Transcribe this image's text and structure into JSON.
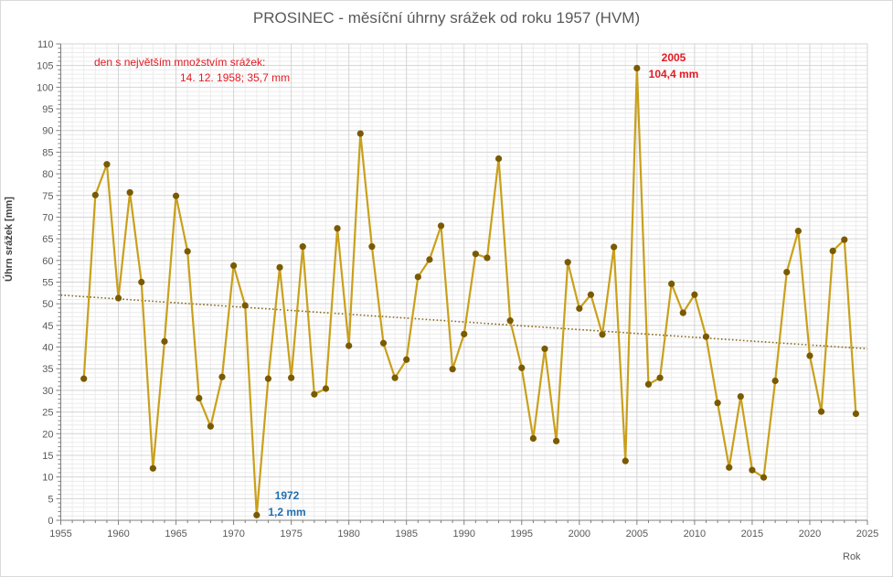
{
  "chart_data": {
    "type": "line",
    "title": "PROSINEC - měsíční úhrny srážek od roku 1957 (HVM)",
    "xlabel": "Rok",
    "ylabel": "Úhrn srážek [mm]",
    "xlim": [
      1955,
      2025
    ],
    "ylim": [
      0,
      110
    ],
    "x_major_step": 5,
    "x_minor_step": 1,
    "y_major_step": 5,
    "y_minor_step": 1,
    "grid": true,
    "legend": "none",
    "x_ticks": [
      "1955",
      "1960",
      "1965",
      "1970",
      "1975",
      "1980",
      "1985",
      "1990",
      "1995",
      "2000",
      "2005",
      "2010",
      "2015",
      "2020",
      "2025"
    ],
    "y_ticks": [
      "0",
      "5",
      "10",
      "15",
      "20",
      "25",
      "30",
      "35",
      "40",
      "45",
      "50",
      "55",
      "60",
      "65",
      "70",
      "75",
      "80",
      "85",
      "90",
      "95",
      "100",
      "105",
      "110"
    ],
    "series": [
      {
        "name": "Úhrn srážek",
        "color": "#c9a01c",
        "marker_color": "#7a5a00",
        "x": [
          1957,
          1958,
          1959,
          1960,
          1961,
          1962,
          1963,
          1964,
          1965,
          1966,
          1967,
          1968,
          1969,
          1970,
          1971,
          1972,
          1973,
          1974,
          1975,
          1976,
          1977,
          1978,
          1979,
          1980,
          1981,
          1982,
          1983,
          1984,
          1985,
          1986,
          1987,
          1988,
          1989,
          1990,
          1991,
          1992,
          1993,
          1994,
          1995,
          1996,
          1997,
          1998,
          1999,
          2000,
          2001,
          2002,
          2003,
          2004,
          2005,
          2006,
          2007,
          2008,
          2009,
          2010,
          2011,
          2012,
          2013,
          2014,
          2015,
          2016,
          2017,
          2018,
          2019,
          2020,
          2021,
          2022,
          2023,
          2024
        ],
        "values": [
          32.7,
          75.1,
          82.2,
          51.3,
          75.7,
          55.0,
          12.0,
          41.3,
          74.9,
          62.1,
          28.2,
          21.7,
          33.1,
          58.8,
          49.6,
          1.2,
          32.7,
          58.4,
          32.9,
          63.2,
          29.1,
          30.4,
          67.4,
          40.3,
          89.3,
          63.2,
          40.9,
          32.9,
          37.1,
          56.2,
          60.2,
          68.0,
          34.9,
          43.0,
          61.5,
          60.6,
          83.5,
          46.1,
          35.2,
          18.9,
          39.6,
          18.3,
          59.6,
          48.9,
          52.1,
          42.9,
          63.1,
          13.7,
          104.4,
          31.4,
          32.9,
          54.6,
          47.9,
          52.1,
          42.4,
          27.1,
          12.2,
          28.6,
          11.6,
          9.9,
          32.2,
          57.3,
          66.8,
          38.0,
          25.1,
          62.2,
          64.8,
          24.6
        ]
      }
    ],
    "trendline": {
      "type": "linear",
      "style": "dotted",
      "color": "#8b6a1f",
      "x": [
        1955,
        2025
      ],
      "values": [
        52.0,
        39.6
      ]
    },
    "annotations": [
      {
        "text": "den s největším množstvím srážek:",
        "color": "#e31b23",
        "bold": false
      },
      {
        "text": "14. 12. 1958;  35,7 mm",
        "color": "#e31b23",
        "bold": false
      },
      {
        "text": "2005",
        "color": "#e31b23",
        "bold": true,
        "x": 2005,
        "y": 104.4
      },
      {
        "text": "104,4 mm",
        "color": "#e31b23",
        "bold": true,
        "x": 2005,
        "y": 104.4
      },
      {
        "text": "1972",
        "color": "#1f6fb2",
        "bold": true,
        "x": 1972,
        "y": 1.2
      },
      {
        "text": "1,2 mm",
        "color": "#1f6fb2",
        "bold": true,
        "x": 1972,
        "y": 1.2
      }
    ]
  }
}
